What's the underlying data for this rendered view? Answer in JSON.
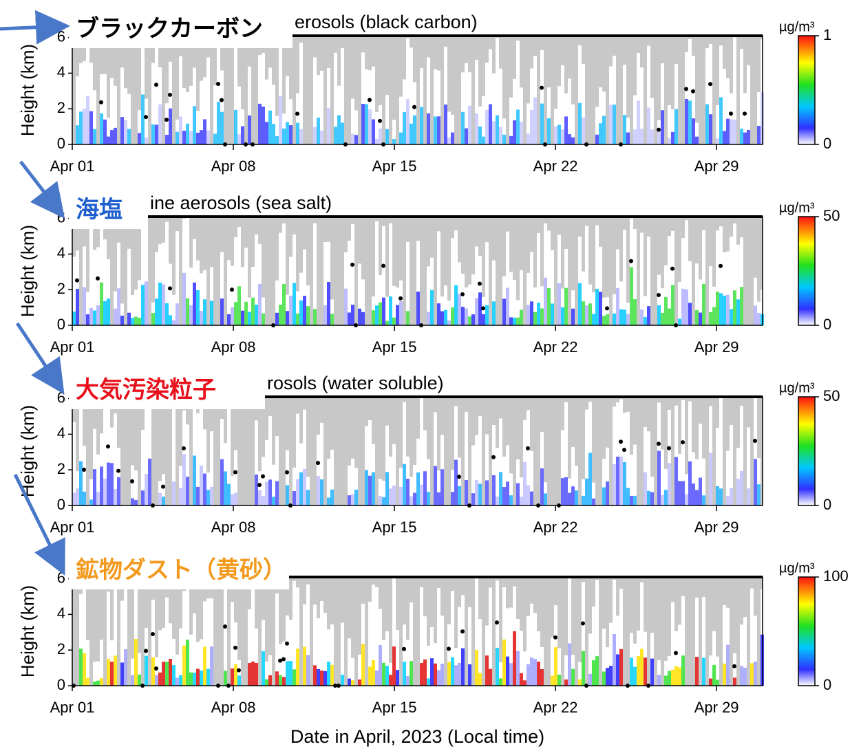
{
  "chart_data": [
    {
      "type": "heatmap",
      "title": "erosols (black carbon)",
      "annotation": "ブラックカーボン",
      "annotation_color": "#000000",
      "ylabel": "Height (km)",
      "ylim": [
        0,
        6.1
      ],
      "yticks": [
        0,
        2,
        4,
        6
      ],
      "xlim": [
        1,
        31
      ],
      "xticks": [
        {
          "value": 1,
          "label": "Apr 01"
        },
        {
          "value": 8,
          "label": "Apr 08"
        },
        {
          "value": 15,
          "label": "Apr 15"
        },
        {
          "value": 22,
          "label": "Apr 22"
        },
        {
          "value": 29,
          "label": "Apr 29"
        }
      ],
      "colorbar_unit": "µg/m³",
      "colorbar_lim": [
        0,
        1
      ],
      "colorbar_ticks": [
        0,
        1
      ]
    },
    {
      "type": "heatmap",
      "title": "ine aerosols (sea salt)",
      "annotation": "海塩",
      "annotation_color": "#1f5fd0",
      "ylabel": "Height (km)",
      "ylim": [
        0,
        6.1
      ],
      "yticks": [
        0,
        2,
        4,
        6
      ],
      "xlim": [
        1,
        31
      ],
      "xticks": [
        {
          "value": 1,
          "label": "Apr 01"
        },
        {
          "value": 8,
          "label": "Apr 08"
        },
        {
          "value": 15,
          "label": "Apr 15"
        },
        {
          "value": 22,
          "label": "Apr 22"
        },
        {
          "value": 29,
          "label": "Apr 29"
        }
      ],
      "colorbar_unit": "µg/m³",
      "colorbar_lim": [
        0,
        50
      ],
      "colorbar_ticks": [
        0,
        50
      ]
    },
    {
      "type": "heatmap",
      "title": "rosols (water soluble)",
      "annotation": "大気汚染粒子",
      "annotation_color": "#e8101a",
      "ylabel": "Height (km)",
      "ylim": [
        0,
        6.1
      ],
      "yticks": [
        0,
        2,
        4,
        6
      ],
      "xlim": [
        1,
        31
      ],
      "xticks": [
        {
          "value": 1,
          "label": "Apr 01"
        },
        {
          "value": 8,
          "label": "Apr 08"
        },
        {
          "value": 15,
          "label": "Apr 15"
        },
        {
          "value": 22,
          "label": "Apr 22"
        },
        {
          "value": 29,
          "label": "Apr 29"
        }
      ],
      "colorbar_unit": "µg/m³",
      "colorbar_lim": [
        0,
        50
      ],
      "colorbar_ticks": [
        0,
        50
      ]
    },
    {
      "type": "heatmap",
      "annotation": "鉱物ダスト（黄砂）",
      "annotation_color": "#f39a1e",
      "ylabel": "Height (km)",
      "ylim": [
        0,
        6.1
      ],
      "yticks": [
        0,
        2,
        4,
        6
      ],
      "xlim": [
        1,
        31
      ],
      "xticks": [
        {
          "value": 1,
          "label": "Apr 01"
        },
        {
          "value": 8,
          "label": "Apr 08"
        },
        {
          "value": 15,
          "label": "Apr 15"
        },
        {
          "value": 22,
          "label": "Apr 22"
        },
        {
          "value": 29,
          "label": "Apr 29"
        }
      ],
      "colorbar_unit": "µg/m³",
      "colorbar_lim": [
        0,
        100
      ],
      "colorbar_ticks": [
        0,
        100
      ],
      "xlabel": "Date in April, 2023 (Local time)"
    }
  ]
}
